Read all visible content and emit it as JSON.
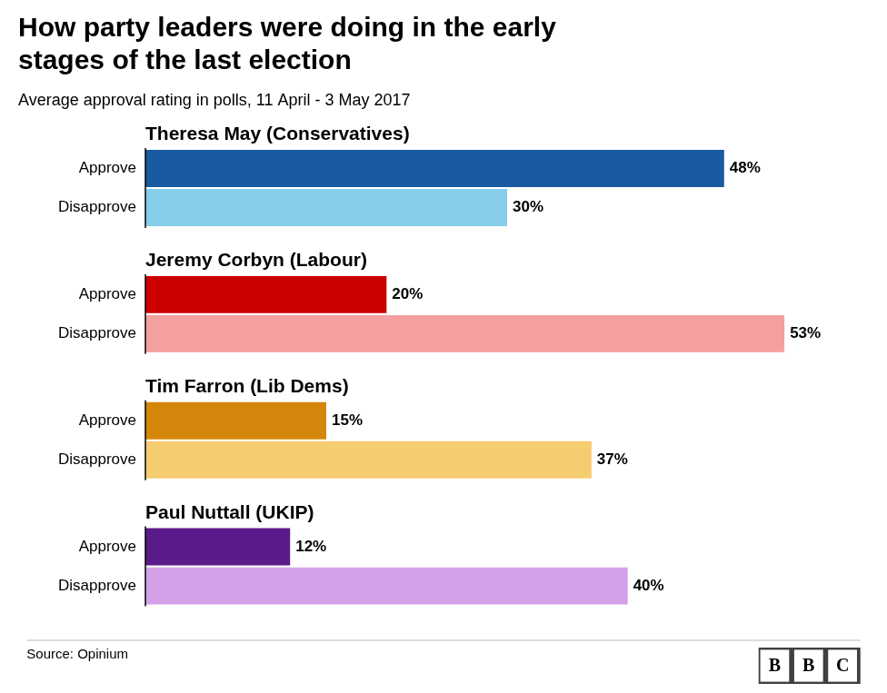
{
  "chart_data": {
    "type": "bar",
    "orientation": "horizontal",
    "title": "How party leaders were doing in the early\nstages of the last election",
    "subtitle": "Average approval rating in polls, 11 April - 3 May 2017",
    "source": "Source: Opinium",
    "logo": "BBC",
    "categories": [
      "Theresa May (Conservatives)",
      "Jeremy Corbyn (Labour)",
      "Tim Farron (Lib Dems)",
      "Paul Nuttall (UKIP)"
    ],
    "series": [
      {
        "name": "Approve",
        "colors": [
          "#1a5aa0",
          "#cc0000",
          "#d4860a",
          "#5b1a8a"
        ],
        "values": [
          48,
          20,
          15,
          12
        ],
        "value_labels": [
          "48%",
          "20%",
          "15%",
          "12%"
        ]
      },
      {
        "name": "Disapprove",
        "colors": [
          "#87ceeb",
          "#f4a0a0",
          "#f5cc70",
          "#d4a0e8"
        ],
        "values": [
          30,
          53,
          37,
          40
        ],
        "value_labels": [
          "30%",
          "53%",
          "37%",
          "40%"
        ]
      }
    ],
    "xlim": [
      0,
      60
    ],
    "data_labels": true,
    "tick_labels": false,
    "grid": false
  }
}
